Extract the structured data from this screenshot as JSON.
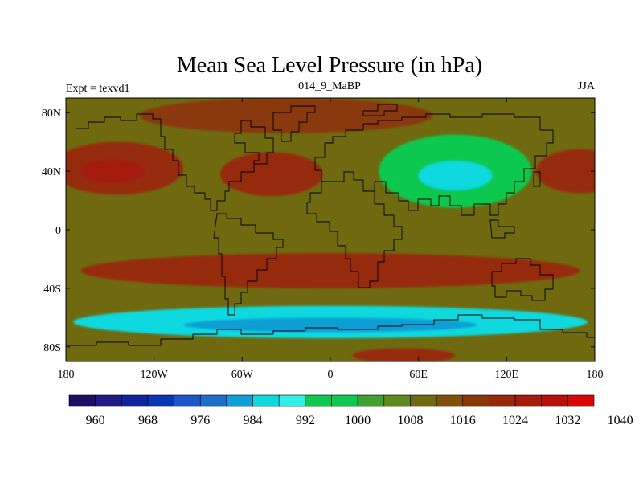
{
  "chart_data": {
    "type": "heatmap",
    "title": "Mean Sea Level Pressure (in hPa)",
    "subtitle_left": "Expt = texvd1",
    "subtitle_center": "014_9_MaBP",
    "subtitle_right": "JJA",
    "x_ticks": [
      {
        "value": -180,
        "label": "180"
      },
      {
        "value": -120,
        "label": "120W"
      },
      {
        "value": -60,
        "label": "60W"
      },
      {
        "value": 0,
        "label": "0"
      },
      {
        "value": 60,
        "label": "60E"
      },
      {
        "value": 120,
        "label": "120E"
      },
      {
        "value": 180,
        "label": "180"
      }
    ],
    "y_ticks": [
      {
        "value": 80,
        "label": "80N"
      },
      {
        "value": 40,
        "label": "40N"
      },
      {
        "value": 0,
        "label": "0"
      },
      {
        "value": -40,
        "label": "40S"
      },
      {
        "value": -80,
        "label": "80S"
      }
    ],
    "xlim": [
      -180,
      180
    ],
    "ylim": [
      -90,
      90
    ],
    "colorbar": {
      "colors": [
        "#1c0f63",
        "#211b86",
        "#10239e",
        "#0b35b3",
        "#1d56c8",
        "#1d6ec8",
        "#0f9ed6",
        "#0fd9df",
        "#30f0e6",
        "#10c850",
        "#10c850",
        "#3fa030",
        "#5f8a1e",
        "#6f6a10",
        "#80500a",
        "#8a380a",
        "#952a0a",
        "#a51d0a",
        "#b80f0a",
        "#d80808"
      ],
      "tick_values": [
        960,
        968,
        976,
        984,
        992,
        1000,
        1008,
        1016,
        1024,
        1032,
        1040
      ],
      "tick_labels": [
        "960",
        "968",
        "976",
        "984",
        "992",
        "1000",
        "1008",
        "1016",
        "1024",
        "1032",
        "1040"
      ]
    },
    "field": {
      "background_hPa": 1010,
      "features": [
        {
          "name": "north-pacific-high",
          "lon": -145,
          "lat": 42,
          "rlon": 45,
          "rlat": 18,
          "hPa": 1020
        },
        {
          "name": "north-pacific-high-core",
          "lon": -148,
          "lat": 40,
          "rlon": 22,
          "rlat": 8,
          "hPa": 1025
        },
        {
          "name": "azores-high",
          "lon": -40,
          "lat": 38,
          "rlon": 35,
          "rlat": 15,
          "hPa": 1020
        },
        {
          "name": "arctic-high",
          "lon": -30,
          "lat": 78,
          "rlon": 100,
          "rlat": 12,
          "hPa": 1016
        },
        {
          "name": "nw-pacific-high",
          "lon": 170,
          "lat": 40,
          "rlon": 30,
          "rlat": 15,
          "hPa": 1020
        },
        {
          "name": "asian-low",
          "lon": 85,
          "lat": 40,
          "rlon": 52,
          "rlat": 25,
          "hPa": 998
        },
        {
          "name": "asian-low-core",
          "lon": 85,
          "lat": 37,
          "rlon": 25,
          "rlat": 10,
          "hPa": 986
        },
        {
          "name": "southern-subtropical-ridge",
          "lon": 0,
          "lat": -28,
          "rlon": 170,
          "rlat": 12,
          "hPa": 1020
        },
        {
          "name": "circumpolar-trough",
          "lon": 0,
          "lat": -63,
          "rlon": 175,
          "rlat": 11,
          "hPa": 984
        },
        {
          "name": "circumpolar-trough-core",
          "lon": 0,
          "lat": -65,
          "rlon": 100,
          "rlat": 5,
          "hPa": 980
        },
        {
          "name": "antarctic-high",
          "lon": 50,
          "lat": -86,
          "rlon": 35,
          "rlat": 5,
          "hPa": 1020
        }
      ]
    }
  }
}
